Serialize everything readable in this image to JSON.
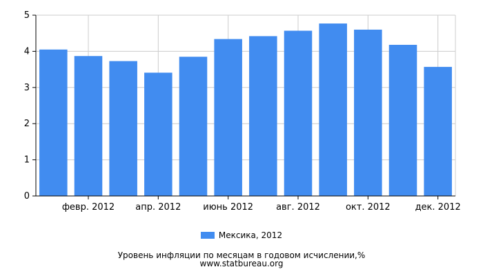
{
  "chart_data": {
    "type": "bar",
    "categories": [
      "",
      "февр. 2012",
      "",
      "апр. 2012",
      "",
      "июнь 2012",
      "",
      "авг. 2012",
      "",
      "окт. 2012",
      "",
      "дек. 2012"
    ],
    "series": [
      {
        "name": "Мексика, 2012",
        "color": "#418cf0",
        "values": [
          4.05,
          3.87,
          3.73,
          3.41,
          3.85,
          4.34,
          4.42,
          4.57,
          4.77,
          4.6,
          4.18,
          3.57
        ]
      }
    ],
    "ylim": [
      0,
      5
    ],
    "yticks": [
      "0",
      "1",
      "2",
      "3",
      "4",
      "5"
    ],
    "grid": true,
    "legend_position": "bottom-center",
    "title": "Уровень инфляции по месяцам в годовом исчислении,%",
    "source": "www.statbureau.org"
  }
}
